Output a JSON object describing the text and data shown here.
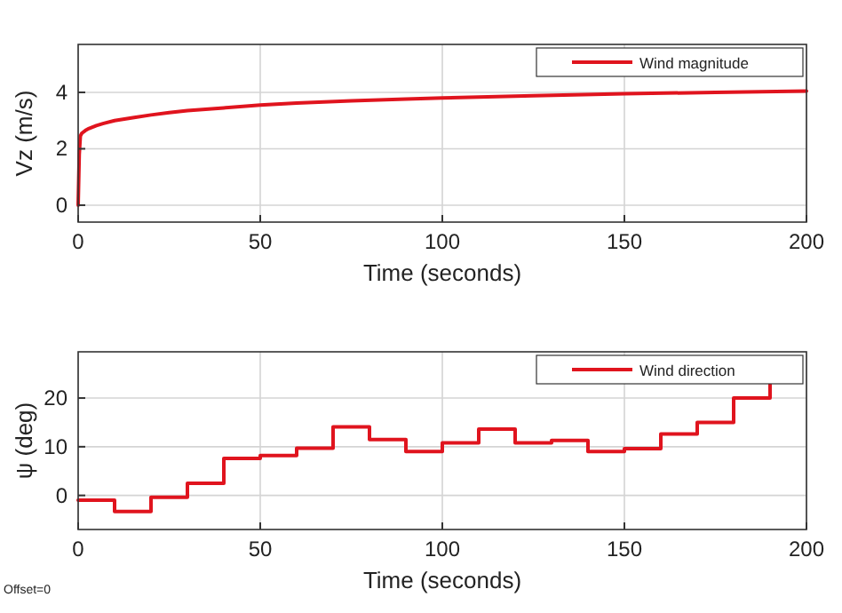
{
  "chart_data": [
    {
      "type": "line",
      "xlabel": "Time (seconds)",
      "ylabel": "Vz (m/s)",
      "xlim": [
        0,
        200
      ],
      "xticks": [
        0,
        50,
        100,
        150,
        200
      ],
      "ylim": [
        -0.6,
        5.7
      ],
      "yticks": [
        0,
        2,
        4
      ],
      "grid": true,
      "legend": "top right",
      "x": [
        0,
        0.3,
        0.6,
        1,
        2,
        3,
        5,
        7,
        10,
        15,
        20,
        25,
        30,
        40,
        50,
        60,
        75,
        90,
        100,
        125,
        150,
        175,
        200
      ],
      "series": [
        {
          "name": "Wind magnitude",
          "color": "#e0141e",
          "values": [
            0,
            1.8,
            2.45,
            2.55,
            2.65,
            2.72,
            2.82,
            2.9,
            3.0,
            3.1,
            3.2,
            3.28,
            3.35,
            3.45,
            3.55,
            3.62,
            3.7,
            3.76,
            3.8,
            3.88,
            3.95,
            4.0,
            4.05
          ]
        }
      ]
    },
    {
      "type": "step",
      "xlabel": "Time (seconds)",
      "ylabel": "ψ (deg)",
      "xlim": [
        0,
        200
      ],
      "xticks": [
        0,
        50,
        100,
        150,
        200
      ],
      "ylim": [
        -7,
        29.5
      ],
      "yticks": [
        0,
        10,
        20
      ],
      "grid": true,
      "legend": "top right",
      "x": [
        0,
        10,
        20,
        30,
        40,
        50,
        60,
        70,
        80,
        90,
        100,
        110,
        120,
        130,
        140,
        150,
        160,
        170,
        180,
        190
      ],
      "series": [
        {
          "name": "Wind direction",
          "color": "#e0141e",
          "values": [
            -1,
            -3.3,
            -0.4,
            2.5,
            7.6,
            8.2,
            9.7,
            14.1,
            11.5,
            9,
            10.8,
            13.6,
            10.8,
            11.3,
            9,
            9.6,
            12.6,
            15,
            20,
            22.8
          ]
        }
      ],
      "annotations": [
        "Offset=0"
      ]
    }
  ]
}
